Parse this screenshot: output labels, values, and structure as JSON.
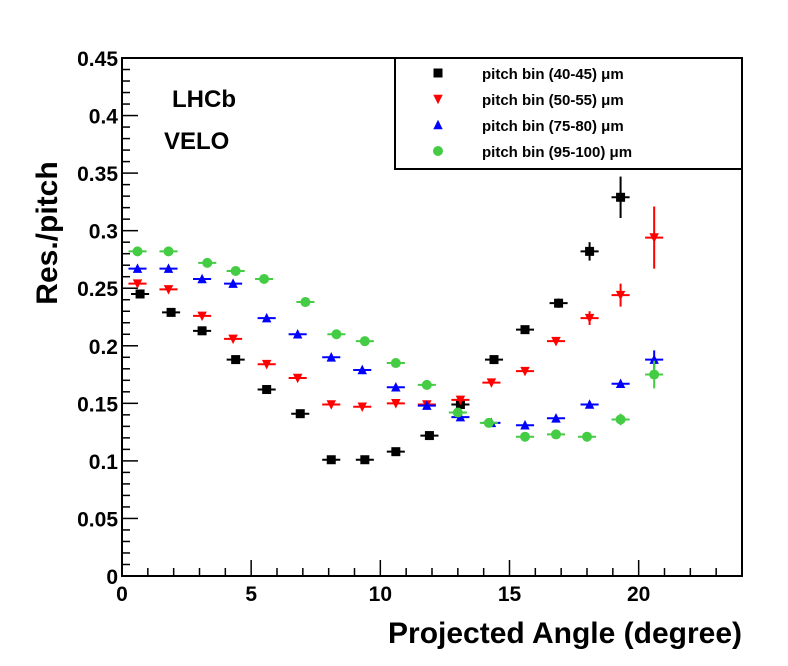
{
  "chart_data": {
    "type": "scatter",
    "title": "",
    "xlabel": "Projected Angle (degree)",
    "ylabel": "Res./pitch",
    "xlim": [
      0,
      24
    ],
    "ylim": [
      0,
      0.45
    ],
    "x_ticks": [
      0,
      5,
      10,
      15,
      20
    ],
    "x_tick_labels": [
      "0",
      "5",
      "10",
      "15",
      "20"
    ],
    "y_ticks": [
      0,
      0.05,
      0.1,
      0.15,
      0.2,
      0.25,
      0.3,
      0.35,
      0.4,
      0.45
    ],
    "y_tick_labels": [
      "0",
      "0.05",
      "0.1",
      "0.15",
      "0.2",
      "0.25",
      "0.3",
      "0.35",
      "0.4",
      "0.45"
    ],
    "experiment": "LHCb",
    "detector": "VELO",
    "legend_position": "top-right",
    "x_bin_half_width": 0.35,
    "series": [
      {
        "name": "pitch bin (40-45) μm",
        "marker": "square",
        "color": "#000000",
        "x": [
          0.7,
          1.9,
          3.1,
          4.4,
          5.6,
          6.9,
          8.1,
          9.4,
          10.6,
          11.9,
          13.1,
          14.4,
          15.6,
          16.9,
          18.1,
          19.3
        ],
        "y": [
          0.245,
          0.229,
          0.213,
          0.188,
          0.162,
          0.141,
          0.101,
          0.101,
          0.108,
          0.122,
          0.149,
          0.188,
          0.214,
          0.237,
          0.282,
          0.329
        ],
        "yerr": [
          0.003,
          0.002,
          0.002,
          0.002,
          0.002,
          0.002,
          0.002,
          0.002,
          0.002,
          0.002,
          0.003,
          0.002,
          0.002,
          0.004,
          0.008,
          0.018
        ]
      },
      {
        "name": "pitch bin (50-55) μm",
        "marker": "triangle-down",
        "color": "#ff0000",
        "x": [
          0.6,
          1.8,
          3.1,
          4.3,
          5.6,
          6.8,
          8.1,
          9.3,
          10.6,
          11.8,
          13.1,
          14.3,
          15.6,
          16.8,
          18.1,
          19.3,
          20.6
        ],
        "y": [
          0.254,
          0.249,
          0.226,
          0.206,
          0.184,
          0.172,
          0.149,
          0.147,
          0.15,
          0.149,
          0.153,
          0.168,
          0.178,
          0.204,
          0.224,
          0.244,
          0.294
        ],
        "yerr": [
          0.002,
          0.002,
          0.002,
          0.002,
          0.002,
          0.002,
          0.002,
          0.002,
          0.002,
          0.002,
          0.002,
          0.002,
          0.002,
          0.003,
          0.006,
          0.01,
          0.027
        ]
      },
      {
        "name": "pitch bin (75-80) μm",
        "marker": "triangle-up",
        "color": "#0000ff",
        "x": [
          0.6,
          1.8,
          3.1,
          4.3,
          5.6,
          6.8,
          8.1,
          9.3,
          10.6,
          11.8,
          13.1,
          14.3,
          15.6,
          16.8,
          18.1,
          19.3,
          20.6
        ],
        "y": [
          0.267,
          0.267,
          0.258,
          0.254,
          0.224,
          0.21,
          0.19,
          0.179,
          0.164,
          0.148,
          0.138,
          0.133,
          0.131,
          0.137,
          0.149,
          0.167,
          0.188
        ],
        "yerr": [
          0.002,
          0.002,
          0.002,
          0.002,
          0.002,
          0.002,
          0.002,
          0.002,
          0.002,
          0.002,
          0.002,
          0.002,
          0.002,
          0.002,
          0.003,
          0.003,
          0.008
        ]
      },
      {
        "name": "pitch bin (95-100) μm",
        "marker": "circle",
        "color": "#44cc44",
        "x": [
          0.6,
          1.8,
          3.3,
          4.4,
          5.5,
          7.1,
          8.3,
          9.4,
          10.6,
          11.8,
          13.0,
          14.2,
          15.6,
          16.8,
          18.0,
          19.3,
          20.6
        ],
        "y": [
          0.282,
          0.282,
          0.272,
          0.265,
          0.258,
          0.238,
          0.21,
          0.204,
          0.185,
          0.166,
          0.142,
          0.133,
          0.121,
          0.123,
          0.121,
          0.136,
          0.175
        ],
        "yerr": [
          0.002,
          0.002,
          0.002,
          0.002,
          0.002,
          0.002,
          0.002,
          0.002,
          0.002,
          0.002,
          0.002,
          0.002,
          0.002,
          0.002,
          0.002,
          0.005,
          0.012
        ]
      }
    ]
  }
}
